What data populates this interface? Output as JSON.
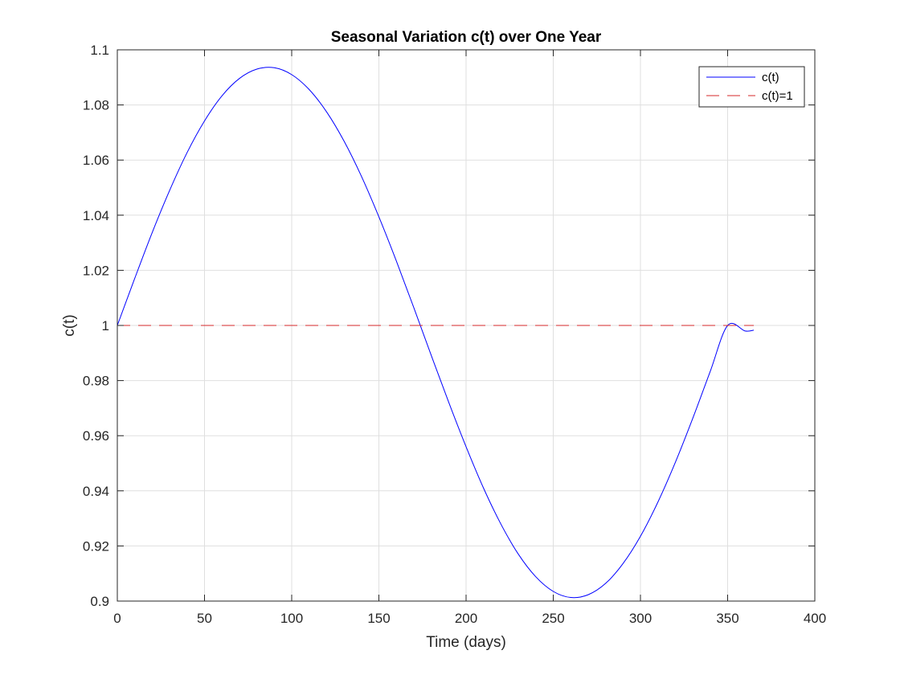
{
  "chart_data": {
    "type": "line",
    "title": "Seasonal Variation c(t) over One Year",
    "xlabel": "Time (days)",
    "ylabel": "c(t)",
    "xlim": [
      0,
      400
    ],
    "ylim": [
      0.9,
      1.1
    ],
    "xticks": [
      0,
      50,
      100,
      150,
      200,
      250,
      300,
      350,
      400
    ],
    "xtick_labels": [
      "0",
      "50",
      "100",
      "150",
      "200",
      "250",
      "300",
      "350",
      "400"
    ],
    "yticks": [
      0.9,
      0.92,
      0.94,
      0.96,
      0.98,
      1.0,
      1.02,
      1.04,
      1.06,
      1.08,
      1.1
    ],
    "ytick_labels": [
      "0.9",
      "0.92",
      "0.94",
      "0.96",
      "0.98",
      "1",
      "1.02",
      "1.04",
      "1.06",
      "1.08",
      "1.1"
    ],
    "grid": true,
    "legend_position": "top-right",
    "series": [
      {
        "name": "c(t)",
        "color": "#0000ff",
        "style": "solid",
        "x": [
          0,
          10,
          20,
          30,
          40,
          50,
          60,
          70,
          80,
          90,
          100,
          110,
          120,
          130,
          140,
          150,
          160,
          170,
          180,
          190,
          200,
          210,
          220,
          230,
          240,
          250,
          260,
          270,
          280,
          290,
          300,
          310,
          320,
          330,
          340,
          350,
          360,
          365
        ],
        "y": [
          1.0,
          1.0171,
          1.0337,
          1.049,
          1.0627,
          1.0742,
          1.0833,
          1.0896,
          1.093,
          1.0935,
          1.091,
          1.0856,
          1.0775,
          1.0669,
          1.0541,
          1.0394,
          1.0234,
          1.0065,
          0.9892,
          0.9722,
          0.956,
          0.941,
          0.9279,
          0.917,
          0.9088,
          0.9035,
          0.9013,
          0.9023,
          0.9064,
          0.9136,
          0.9235,
          0.9359,
          0.9503,
          0.9663,
          0.9833,
          1.0,
          0.998,
          0.9983
        ]
      },
      {
        "name": "c(t)=1",
        "color": "#d62728",
        "style": "dashed",
        "x": [
          0,
          365
        ],
        "y": [
          1.0,
          1.0
        ]
      }
    ]
  }
}
